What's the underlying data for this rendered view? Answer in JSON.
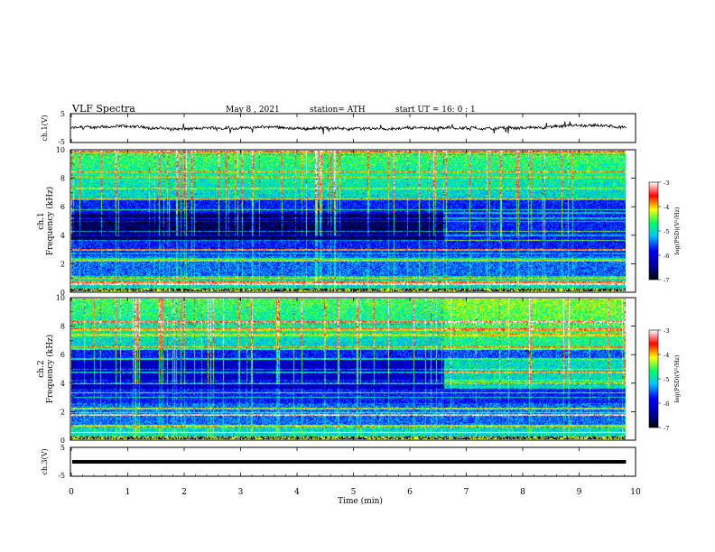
{
  "header": {
    "title": "VLF  Spectra",
    "date": "May 8  , 2021",
    "station": "station= ATH",
    "start": "start  UT  =     16: 0   : 1"
  },
  "colors": {
    "frame": "#000000",
    "background": "#ffffff",
    "colormap": [
      "#000000",
      "#000080",
      "#0000ff",
      "#00c8ff",
      "#00ff80",
      "#ffff00",
      "#ff0000",
      "#ffffff"
    ]
  },
  "chart_data": [
    {
      "id": "ch1v",
      "type": "line",
      "ylabel": "ch.1(V)",
      "ylim": [
        -5,
        5
      ],
      "yticks": [
        "5",
        "-5"
      ],
      "x_range_min": [
        0,
        9.83
      ],
      "description_level": "noisy waveform near 0 V"
    },
    {
      "id": "ch1spec",
      "type": "heatmap",
      "ylabel_line1": "ch.1",
      "ylabel_line2": "Frequency  (kHz)",
      "ylim": [
        0,
        10
      ],
      "yticks": [
        "0",
        "2",
        "4",
        "6",
        "8",
        "10"
      ],
      "x_range_min": [
        0,
        9.83
      ],
      "change_time_min": 6.6,
      "colorbar": {
        "label": "log(PSD)(V²/Hz)",
        "ticks": [
          "-3",
          "-4",
          "-5",
          "-6",
          "-7"
        ],
        "range": [
          -7,
          -3
        ]
      }
    },
    {
      "id": "ch2spec",
      "type": "heatmap",
      "ylabel_line1": "ch.2",
      "ylabel_line2": "Frequency  (kHz)",
      "ylim": [
        0,
        10
      ],
      "yticks": [
        "0",
        "2",
        "4",
        "6",
        "8",
        "10"
      ],
      "x_range_min": [
        0,
        9.83
      ],
      "change_time_min": 6.6,
      "colorbar": {
        "label": "log(PSD)(V²/Hz)",
        "ticks": [
          "-3",
          "-4",
          "-5",
          "-6",
          "-7"
        ],
        "range": [
          -7,
          -3
        ]
      }
    },
    {
      "id": "ch3v",
      "type": "line",
      "ylabel": "ch.3(V)",
      "ylim": [
        -5,
        5
      ],
      "yticks": [
        "5",
        "-5"
      ],
      "x_range_min": [
        0,
        9.83
      ],
      "level": 0
    }
  ],
  "xaxis": {
    "label": "Time  (min)",
    "ticks": [
      "0",
      "1",
      "2",
      "3",
      "4",
      "5",
      "6",
      "7",
      "8",
      "9",
      "10"
    ],
    "xlim": [
      0,
      10
    ]
  }
}
